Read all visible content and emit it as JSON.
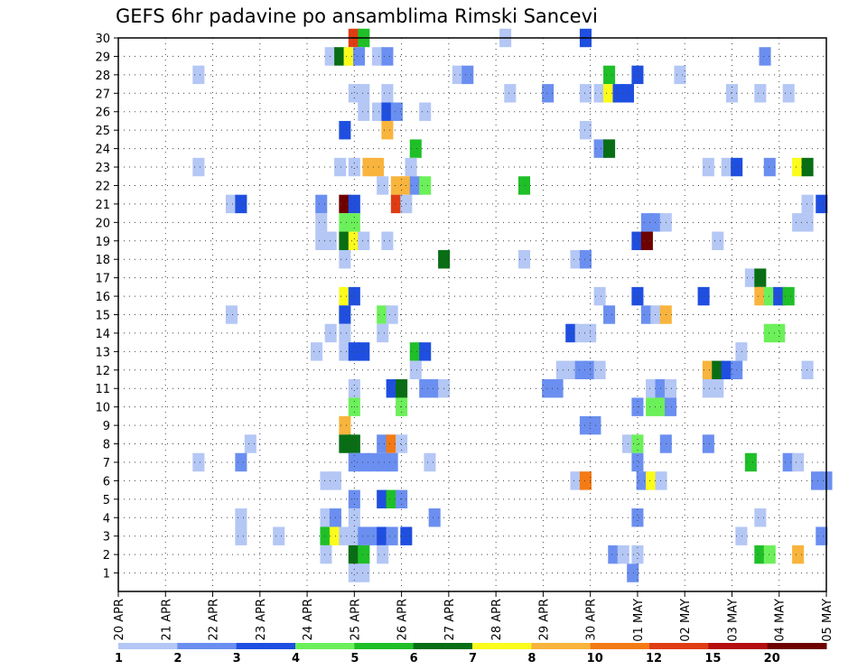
{
  "chart_data": {
    "type": "heatmap",
    "title": "GEFS 6hr padavine po ansamblima Rimski Sancevi",
    "x_tick_labels": [
      "20 APR",
      "21 APR",
      "22 APR",
      "23 APR",
      "24 APR",
      "25 APR",
      "26 APR",
      "27 APR",
      "28 APR",
      "29 APR",
      "30 APR",
      "01 MAY",
      "02 MAY",
      "03 MAY",
      "04 MAY",
      "05 MAY"
    ],
    "y_tick_labels": [
      "1",
      "2",
      "3",
      "4",
      "5",
      "6",
      "7",
      "8",
      "9",
      "10",
      "11",
      "12",
      "13",
      "14",
      "15",
      "16",
      "17",
      "18",
      "19",
      "20",
      "21",
      "22",
      "23",
      "24",
      "25",
      "26",
      "27",
      "28",
      "29",
      "30"
    ],
    "ylim": [
      0,
      30
    ],
    "grid": true,
    "colorbar": {
      "labels": [
        "1",
        "2",
        "3",
        "4",
        "5",
        "6",
        "7",
        "8",
        "10",
        "12",
        "15",
        "20"
      ],
      "colors": [
        "#b4c7f5",
        "#6b8ff0",
        "#1f4fe0",
        "#6cf05a",
        "#1fbf28",
        "#086e14",
        "#fbfb1c",
        "#f8b43c",
        "#f47a14",
        "#e03c14",
        "#b40e0e",
        "#6e0000"
      ]
    },
    "cells": [
      [
        25,
        30,
        9
      ],
      [
        25.2,
        30,
        4
      ],
      [
        28.2,
        30,
        0
      ],
      [
        29.9,
        30,
        2
      ],
      [
        24.5,
        29,
        0
      ],
      [
        24.7,
        29,
        5
      ],
      [
        24.9,
        29,
        6
      ],
      [
        25.1,
        29,
        1
      ],
      [
        25.5,
        29,
        0
      ],
      [
        25.7,
        29,
        1
      ],
      [
        33.7,
        29,
        1
      ],
      [
        21.7,
        28,
        0
      ],
      [
        27.2,
        28,
        0
      ],
      [
        27.4,
        28,
        1
      ],
      [
        30.4,
        28,
        4
      ],
      [
        31.0,
        28,
        2
      ],
      [
        31.9,
        28,
        0
      ],
      [
        25.0,
        27,
        0
      ],
      [
        25.2,
        27,
        0
      ],
      [
        25.7,
        27,
        0
      ],
      [
        28.3,
        27,
        0
      ],
      [
        29.1,
        27,
        1
      ],
      [
        29.9,
        27,
        0
      ],
      [
        30.2,
        27,
        0
      ],
      [
        30.4,
        27,
        6
      ],
      [
        30.6,
        27,
        2
      ],
      [
        30.8,
        27,
        2
      ],
      [
        33.0,
        27,
        0
      ],
      [
        33.6,
        27,
        0
      ],
      [
        34.2,
        27,
        0
      ],
      [
        25.2,
        26,
        0
      ],
      [
        25.5,
        26,
        0
      ],
      [
        25.7,
        26,
        2
      ],
      [
        25.9,
        26,
        1
      ],
      [
        26.5,
        26,
        0
      ],
      [
        24.8,
        25,
        2
      ],
      [
        25.7,
        25,
        7
      ],
      [
        29.9,
        25,
        0
      ],
      [
        26.3,
        24,
        4
      ],
      [
        30.2,
        24,
        1
      ],
      [
        30.4,
        24,
        5
      ],
      [
        21.7,
        23,
        0
      ],
      [
        24.7,
        23,
        0
      ],
      [
        25.0,
        23,
        0
      ],
      [
        25.3,
        23,
        7
      ],
      [
        25.5,
        23,
        7
      ],
      [
        26.2,
        23,
        0
      ],
      [
        32.5,
        23,
        0
      ],
      [
        32.9,
        23,
        0
      ],
      [
        33.1,
        23,
        2
      ],
      [
        33.8,
        23,
        1
      ],
      [
        34.4,
        23,
        6
      ],
      [
        34.6,
        23,
        5
      ],
      [
        25.6,
        22,
        0
      ],
      [
        25.9,
        22,
        7
      ],
      [
        26.1,
        22,
        7
      ],
      [
        26.3,
        22,
        1
      ],
      [
        26.5,
        22,
        3
      ],
      [
        28.6,
        22,
        4
      ],
      [
        22.4,
        21,
        0
      ],
      [
        22.6,
        21,
        2
      ],
      [
        24.3,
        21,
        1
      ],
      [
        24.8,
        21,
        11
      ],
      [
        25.0,
        21,
        2
      ],
      [
        25.9,
        21,
        9
      ],
      [
        26.1,
        21,
        0
      ],
      [
        34.6,
        21,
        0
      ],
      [
        34.9,
        21,
        2
      ],
      [
        24.3,
        20,
        0
      ],
      [
        24.8,
        20,
        3
      ],
      [
        25.0,
        20,
        3
      ],
      [
        31.2,
        20,
        1
      ],
      [
        31.4,
        20,
        1
      ],
      [
        31.6,
        20,
        0
      ],
      [
        34.4,
        20,
        0
      ],
      [
        34.6,
        20,
        0
      ],
      [
        24.3,
        19,
        0
      ],
      [
        24.5,
        19,
        0
      ],
      [
        24.8,
        19,
        5
      ],
      [
        25.0,
        19,
        6
      ],
      [
        25.2,
        19,
        0
      ],
      [
        25.7,
        19,
        0
      ],
      [
        31.0,
        19,
        2
      ],
      [
        31.2,
        19,
        11
      ],
      [
        32.7,
        19,
        0
      ],
      [
        24.8,
        18,
        0
      ],
      [
        26.9,
        18,
        5
      ],
      [
        28.6,
        18,
        0
      ],
      [
        29.7,
        18,
        0
      ],
      [
        29.9,
        18,
        1
      ],
      [
        33.4,
        17,
        0
      ],
      [
        33.6,
        17,
        5
      ],
      [
        24.8,
        16,
        6
      ],
      [
        25.0,
        16,
        2
      ],
      [
        30.2,
        16,
        0
      ],
      [
        31.0,
        16,
        2
      ],
      [
        32.4,
        16,
        2
      ],
      [
        33.6,
        16,
        7
      ],
      [
        33.8,
        16,
        3
      ],
      [
        34.0,
        16,
        2
      ],
      [
        34.2,
        16,
        4
      ],
      [
        22.4,
        15,
        0
      ],
      [
        24.8,
        15,
        2
      ],
      [
        25.6,
        15,
        3
      ],
      [
        25.8,
        15,
        0
      ],
      [
        30.4,
        15,
        1
      ],
      [
        31.2,
        15,
        1
      ],
      [
        31.4,
        15,
        0
      ],
      [
        31.6,
        15,
        7
      ],
      [
        24.5,
        14,
        0
      ],
      [
        24.8,
        14,
        0
      ],
      [
        25.6,
        14,
        0
      ],
      [
        29.6,
        14,
        2
      ],
      [
        29.8,
        14,
        0
      ],
      [
        30.0,
        14,
        0
      ],
      [
        33.8,
        14,
        3
      ],
      [
        34.0,
        14,
        3
      ],
      [
        24.2,
        13,
        0
      ],
      [
        24.8,
        13,
        0
      ],
      [
        25.0,
        13,
        2
      ],
      [
        25.2,
        13,
        2
      ],
      [
        26.3,
        13,
        4
      ],
      [
        26.5,
        13,
        2
      ],
      [
        33.2,
        13,
        0
      ],
      [
        26.3,
        12,
        0
      ],
      [
        29.4,
        12,
        0
      ],
      [
        29.6,
        12,
        0
      ],
      [
        29.8,
        12,
        1
      ],
      [
        30.0,
        12,
        1
      ],
      [
        30.2,
        12,
        0
      ],
      [
        32.5,
        12,
        7
      ],
      [
        32.7,
        12,
        5
      ],
      [
        32.9,
        12,
        2
      ],
      [
        33.1,
        12,
        1
      ],
      [
        34.6,
        12,
        0
      ],
      [
        25.0,
        11,
        0
      ],
      [
        25.8,
        11,
        2
      ],
      [
        26.0,
        11,
        5
      ],
      [
        26.5,
        11,
        1
      ],
      [
        26.7,
        11,
        1
      ],
      [
        26.9,
        11,
        0
      ],
      [
        29.1,
        11,
        1
      ],
      [
        29.3,
        11,
        1
      ],
      [
        31.3,
        11,
        0
      ],
      [
        31.5,
        11,
        1
      ],
      [
        31.7,
        11,
        0
      ],
      [
        32.5,
        11,
        0
      ],
      [
        32.7,
        11,
        0
      ],
      [
        25.0,
        10,
        3
      ],
      [
        26.0,
        10,
        3
      ],
      [
        31.0,
        10,
        1
      ],
      [
        31.3,
        10,
        3
      ],
      [
        31.5,
        10,
        3
      ],
      [
        31.7,
        10,
        1
      ],
      [
        24.8,
        9,
        7
      ],
      [
        29.9,
        9,
        1
      ],
      [
        30.1,
        9,
        1
      ],
      [
        22.8,
        8,
        0
      ],
      [
        24.8,
        8,
        5
      ],
      [
        25.0,
        8,
        5
      ],
      [
        25.6,
        8,
        1
      ],
      [
        25.8,
        8,
        8
      ],
      [
        26.0,
        8,
        0
      ],
      [
        30.8,
        8,
        0
      ],
      [
        31.0,
        8,
        3
      ],
      [
        31.6,
        8,
        1
      ],
      [
        32.5,
        8,
        1
      ],
      [
        21.7,
        7,
        0
      ],
      [
        22.6,
        7,
        1
      ],
      [
        25.0,
        7,
        1
      ],
      [
        25.2,
        7,
        1
      ],
      [
        25.4,
        7,
        1
      ],
      [
        25.6,
        7,
        1
      ],
      [
        25.8,
        7,
        1
      ],
      [
        26.6,
        7,
        0
      ],
      [
        31.0,
        7,
        1
      ],
      [
        33.4,
        7,
        4
      ],
      [
        34.2,
        7,
        1
      ],
      [
        34.4,
        7,
        0
      ],
      [
        24.4,
        6,
        0
      ],
      [
        24.6,
        6,
        0
      ],
      [
        29.7,
        6,
        0
      ],
      [
        29.9,
        6,
        8
      ],
      [
        31.1,
        6,
        1
      ],
      [
        31.3,
        6,
        6
      ],
      [
        31.5,
        6,
        0
      ],
      [
        34.8,
        6,
        1
      ],
      [
        35.0,
        6,
        1
      ],
      [
        25.0,
        5,
        1
      ],
      [
        25.6,
        5,
        2
      ],
      [
        25.8,
        5,
        4
      ],
      [
        26.0,
        5,
        1
      ],
      [
        22.6,
        4,
        0
      ],
      [
        24.4,
        4,
        0
      ],
      [
        24.6,
        4,
        1
      ],
      [
        25.0,
        4,
        0
      ],
      [
        26.7,
        4,
        1
      ],
      [
        31.0,
        4,
        1
      ],
      [
        33.6,
        4,
        0
      ],
      [
        22.6,
        3,
        0
      ],
      [
        23.4,
        3,
        0
      ],
      [
        24.4,
        3,
        4
      ],
      [
        24.6,
        3,
        6
      ],
      [
        24.8,
        3,
        0
      ],
      [
        25.0,
        3,
        0
      ],
      [
        25.2,
        3,
        1
      ],
      [
        25.4,
        3,
        1
      ],
      [
        25.6,
        3,
        2
      ],
      [
        25.8,
        3,
        1
      ],
      [
        26.1,
        3,
        2
      ],
      [
        33.2,
        3,
        0
      ],
      [
        34.9,
        3,
        1
      ],
      [
        24.4,
        2,
        0
      ],
      [
        25.0,
        2,
        5
      ],
      [
        25.2,
        2,
        4
      ],
      [
        25.6,
        2,
        0
      ],
      [
        30.5,
        2,
        1
      ],
      [
        30.7,
        2,
        0
      ],
      [
        31.0,
        2,
        0
      ],
      [
        33.6,
        2,
        4
      ],
      [
        33.8,
        2,
        3
      ],
      [
        34.4,
        2,
        7
      ],
      [
        25.0,
        1,
        0
      ],
      [
        25.2,
        1,
        0
      ],
      [
        30.9,
        1,
        1
      ]
    ]
  }
}
